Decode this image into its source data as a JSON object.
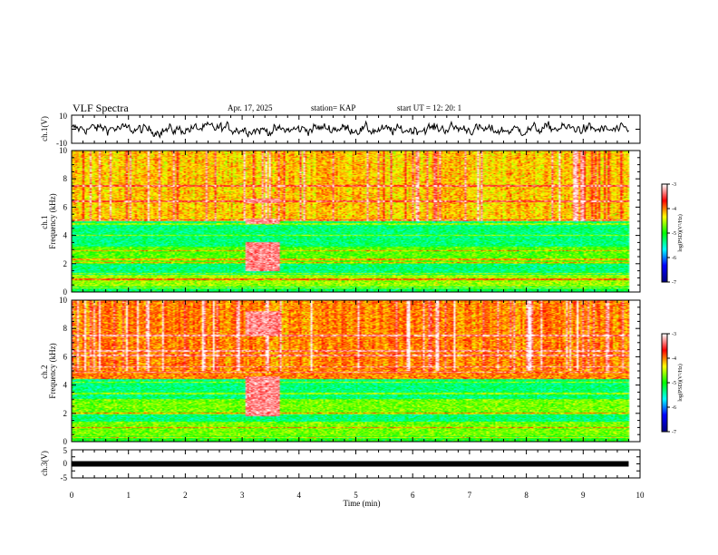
{
  "header": {
    "title": "VLF Spectra",
    "date": "Apr. 17, 2025",
    "station": "station= KAP",
    "start": "start  UT  =   12: 20: 1"
  },
  "chart_data": [
    {
      "type": "line",
      "name": "ch1-waveform",
      "ylabel": "ch.1(V)",
      "ylim": [
        -10,
        10
      ],
      "yticks": [
        "10",
        "-10"
      ],
      "xlim": [
        0,
        10
      ],
      "description_of_trace": "noisy waveform mostly between about -5 and 5 V"
    },
    {
      "type": "heatmap",
      "name": "ch1-spectrogram",
      "ylabel": "ch.1\nFrequency (kHz)",
      "xlim": [
        0,
        10
      ],
      "data_end_x": 9.8,
      "ylim": [
        0,
        10
      ],
      "yticks": [
        "0",
        "2",
        "4",
        "6",
        "8",
        "10"
      ],
      "colorbar": {
        "label": "log(PSD)(V²/Hz)",
        "range": [
          -7,
          -3
        ],
        "ticks": [
          "-3",
          "-4",
          "-5",
          "-6",
          "-7"
        ],
        "colormap": [
          "#000080",
          "#0000ff",
          "#00ffff",
          "#00ff00",
          "#ffff00",
          "#ff0000",
          "#ffffff"
        ]
      },
      "bands": [
        {
          "from": 0.0,
          "to": 0.4,
          "level": -5.2
        },
        {
          "from": 0.4,
          "to": 1.2,
          "level": -4.6
        },
        {
          "from": 1.2,
          "to": 2.0,
          "level": -5.3
        },
        {
          "from": 2.0,
          "to": 3.2,
          "level": -4.8
        },
        {
          "from": 3.2,
          "to": 5.0,
          "level": -5.3
        },
        {
          "from": 5.0,
          "to": 10.0,
          "level": -4.2
        }
      ],
      "lines_khz": [
        0.3,
        0.9,
        1.3,
        2.1,
        2.3,
        2.9,
        4.0,
        4.8,
        5.1,
        6.4,
        7.5
      ],
      "events": [
        {
          "x_start": 3.05,
          "x_end": 3.65,
          "level": -3.3,
          "f_from": 1.5,
          "f_to": 3.5
        },
        {
          "x_start": 3.05,
          "x_end": 3.65,
          "level": -3.3,
          "f_from": 4.8,
          "f_to": 5.2
        },
        {
          "x_start": 3.05,
          "x_end": 3.65,
          "level": -3.3,
          "f_from": 6.3,
          "f_to": 6.6
        }
      ]
    },
    {
      "type": "heatmap",
      "name": "ch2-spectrogram",
      "ylabel": "ch.2\nFrequency (kHz)",
      "xlim": [
        0,
        10
      ],
      "data_end_x": 9.8,
      "ylim": [
        0,
        10
      ],
      "yticks": [
        "0",
        "2",
        "4",
        "6",
        "8",
        "10"
      ],
      "colorbar": {
        "label": "log(PSD)(V²/Hz)",
        "range": [
          -7,
          -3
        ],
        "ticks": [
          "-3",
          "-4",
          "-5",
          "-6",
          "-7"
        ],
        "colormap": [
          "#000080",
          "#0000ff",
          "#00ffff",
          "#00ff00",
          "#ffff00",
          "#ff0000",
          "#ffffff"
        ]
      },
      "bands": [
        {
          "from": 0.0,
          "to": 0.4,
          "level": -5.0
        },
        {
          "from": 0.4,
          "to": 1.4,
          "level": -4.7
        },
        {
          "from": 1.4,
          "to": 2.0,
          "level": -5.3
        },
        {
          "from": 2.0,
          "to": 3.0,
          "level": -4.7
        },
        {
          "from": 3.0,
          "to": 4.4,
          "level": -5.3
        },
        {
          "from": 4.4,
          "to": 10.0,
          "level": -4.0
        }
      ],
      "lines_khz": [
        0.3,
        1.0,
        2.0,
        3.4,
        4.2,
        4.9,
        5.3,
        6.1,
        6.4,
        7.5
      ],
      "events": [
        {
          "x_start": 3.05,
          "x_end": 3.65,
          "level": -3.3,
          "f_from": 1.8,
          "f_to": 4.6
        },
        {
          "x_start": 3.05,
          "x_end": 3.65,
          "level": -3.3,
          "f_from": 7.5,
          "f_to": 9.2
        }
      ]
    },
    {
      "type": "line",
      "name": "ch3-waveform",
      "ylabel": "ch.3(V)",
      "ylim": [
        -5,
        5
      ],
      "yticks": [
        "5",
        "0",
        "-5"
      ],
      "xlim": [
        0,
        10
      ],
      "xlabel": "Time (min)",
      "xticks": [
        "0",
        "1",
        "2",
        "3",
        "4",
        "5",
        "6",
        "7",
        "8",
        "9",
        "10"
      ],
      "flat_level": 0
    }
  ]
}
